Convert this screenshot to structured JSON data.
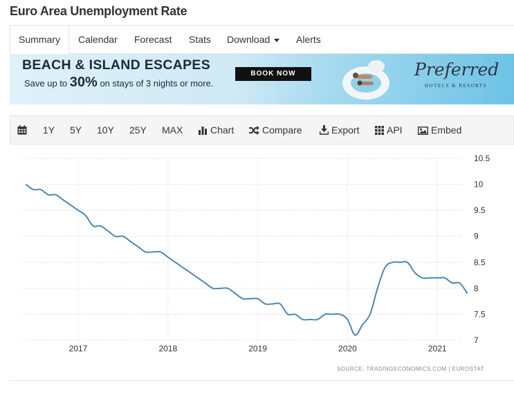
{
  "page": {
    "title": "Euro Area Unemployment Rate"
  },
  "tabs": [
    {
      "label": "Summary",
      "active": true
    },
    {
      "label": "Calendar"
    },
    {
      "label": "Forecast"
    },
    {
      "label": "Stats"
    },
    {
      "label": "Download"
    },
    {
      "label": "Alerts"
    }
  ],
  "banner": {
    "headline": "BEACH & ISLAND ESCAPES",
    "sub_before": "Save up to",
    "sub_percent": "30%",
    "sub_after": "on stays of 3 nights or more.",
    "button": "BOOK NOW",
    "logo": "Preferred",
    "logo_sub": "HOTELS & RESORTS"
  },
  "toolbar": {
    "calendar_icon": "calendar-icon",
    "ranges": [
      "1Y",
      "5Y",
      "10Y",
      "25Y",
      "MAX"
    ],
    "chart_label": "Chart",
    "compare_label": "Compare",
    "export_label": "Export",
    "api_label": "API",
    "embed_label": "Embed"
  },
  "colors": {
    "line": "#4a86b0",
    "grid": "#cfcfcf",
    "banner_dark": "#1b2a3a"
  },
  "chart_data": {
    "type": "line",
    "title": "",
    "xlabel": "",
    "ylabel": "",
    "ylim": [
      7,
      10.5
    ],
    "yticks": [
      7,
      7.5,
      8,
      8.5,
      9,
      9.5,
      10,
      10.5
    ],
    "xticks": [
      "2017",
      "2018",
      "2019",
      "2020",
      "2021"
    ],
    "grid": true,
    "source": "SOURCE: TRADINGECONOMICS.COM  |  EUROSTAT",
    "series": [
      {
        "x": [
          "2016-06",
          "2016-07",
          "2016-08",
          "2016-09",
          "2016-10",
          "2016-11",
          "2016-12",
          "2017-01",
          "2017-02",
          "2017-03",
          "2017-04",
          "2017-05",
          "2017-06",
          "2017-07",
          "2017-08",
          "2017-09",
          "2017-10",
          "2017-11",
          "2017-12",
          "2018-01",
          "2018-02",
          "2018-03",
          "2018-04",
          "2018-05",
          "2018-06",
          "2018-07",
          "2018-08",
          "2018-09",
          "2018-10",
          "2018-11",
          "2018-12",
          "2019-01",
          "2019-02",
          "2019-03",
          "2019-04",
          "2019-05",
          "2019-06",
          "2019-07",
          "2019-08",
          "2019-09",
          "2019-10",
          "2019-11",
          "2019-12",
          "2020-01",
          "2020-02",
          "2020-03",
          "2020-04",
          "2020-05",
          "2020-06",
          "2020-07",
          "2020-08",
          "2020-09",
          "2020-10",
          "2020-11",
          "2020-12",
          "2021-01",
          "2021-02",
          "2021-03",
          "2021-04",
          "2021-05"
        ],
        "values": [
          10.0,
          9.9,
          9.9,
          9.8,
          9.8,
          9.7,
          9.6,
          9.5,
          9.4,
          9.2,
          9.2,
          9.1,
          9.0,
          9.0,
          8.9,
          8.8,
          8.7,
          8.7,
          8.7,
          8.6,
          8.5,
          8.4,
          8.3,
          8.2,
          8.1,
          8.0,
          8.0,
          8.0,
          7.9,
          7.8,
          7.8,
          7.8,
          7.7,
          7.7,
          7.7,
          7.5,
          7.5,
          7.4,
          7.4,
          7.4,
          7.5,
          7.5,
          7.5,
          7.4,
          7.1,
          7.3,
          7.5,
          8.0,
          8.4,
          8.5,
          8.5,
          8.5,
          8.3,
          8.2,
          8.2,
          8.2,
          8.2,
          8.1,
          8.1,
          7.9
        ]
      }
    ]
  }
}
